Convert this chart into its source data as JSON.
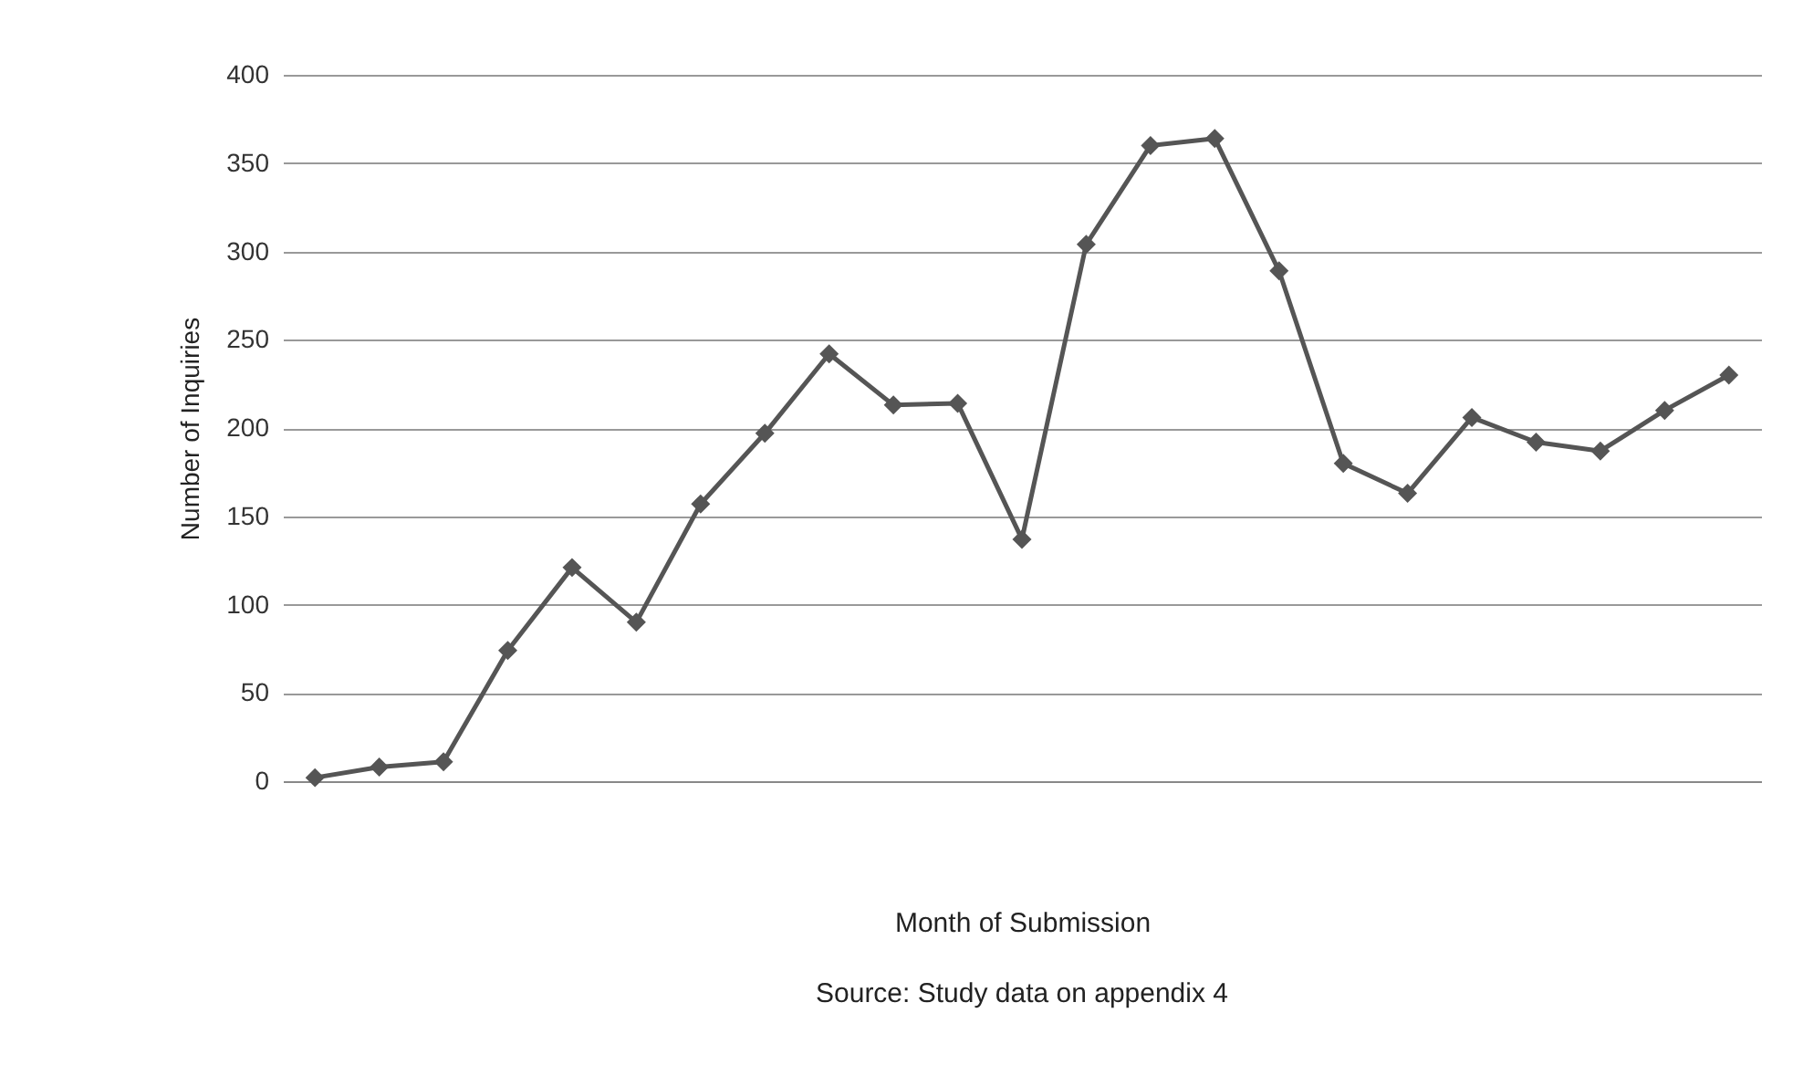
{
  "chart_data": {
    "type": "line",
    "xlabel": "Month of Submission",
    "ylabel": "Number of Inquiries",
    "annotations": [
      "Source: Study data on appendix 4"
    ],
    "categories": [
      null,
      null,
      null,
      null,
      null,
      null,
      null,
      null,
      null,
      null,
      null,
      null,
      null,
      null,
      null,
      null,
      null,
      null,
      null,
      null,
      null,
      null,
      null
    ],
    "series": [
      {
        "color": "#555555",
        "values": [
          2,
          8,
          11,
          74,
          121,
          90,
          157,
          197,
          242,
          213,
          214,
          137,
          304,
          360,
          364,
          289,
          180,
          163,
          206,
          192,
          187,
          210,
          230
        ]
      }
    ],
    "ylim": [
      0,
      400
    ],
    "yticks": [
      0,
      50,
      100,
      150,
      200,
      250,
      300,
      350,
      400
    ],
    "grid": "y",
    "marker": "diamond",
    "line_style": "solid",
    "tick_labels": "y"
  }
}
